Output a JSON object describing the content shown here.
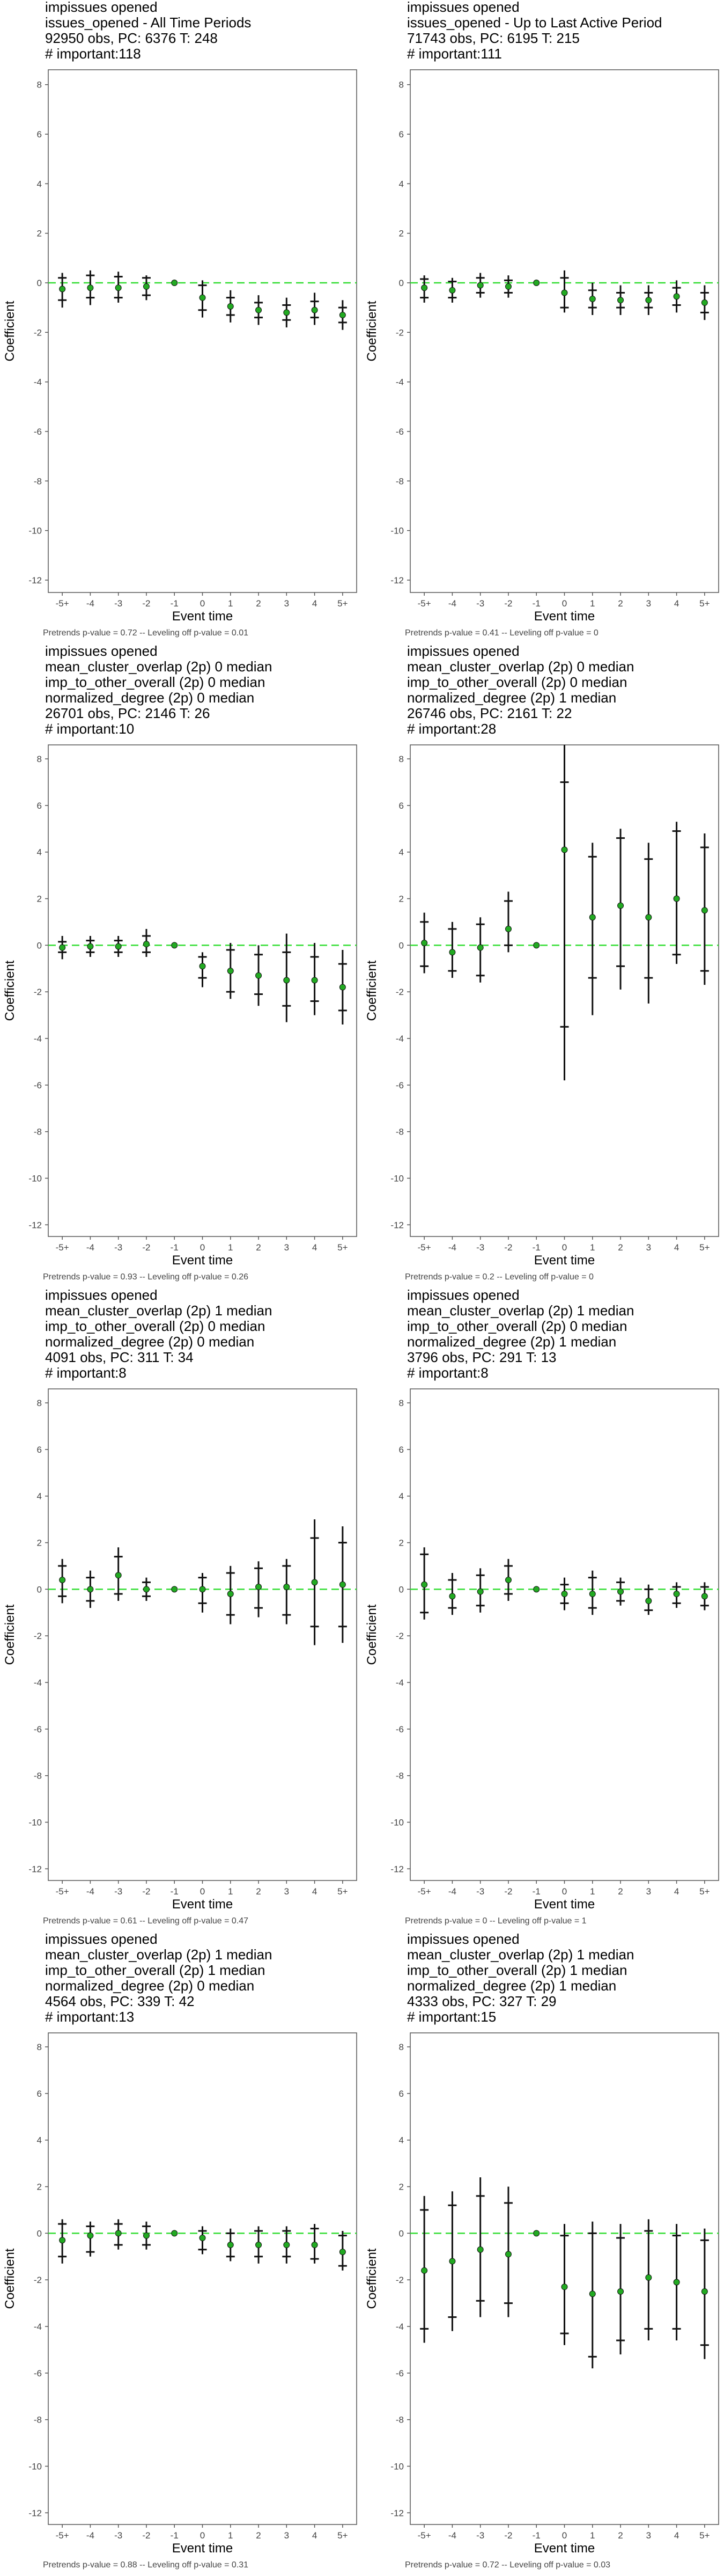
{
  "colors": {
    "panel_border": "#555555",
    "zero_line": "#33dd33",
    "point": "#22aa22",
    "bar": "#111111",
    "text": "#000000",
    "tick_text": "#444444"
  },
  "chart_data": [
    {
      "type": "scatter",
      "title_lines": [
        " impissues opened",
        "issues_opened - All Time Periods",
        "92950 obs, PC: 6376 T: 248",
        "# important:118"
      ],
      "xlabel": "Event time",
      "ylabel": "Coefficient",
      "categories": [
        "-5+",
        "-4",
        "-3",
        "-2",
        "-1",
        "0",
        "1",
        "2",
        "3",
        "4",
        "5+"
      ],
      "yticks": [
        8,
        6,
        4,
        2,
        0,
        -2,
        -4,
        -6,
        -8,
        -10,
        -12
      ],
      "ylim": [
        -12.5,
        8.6
      ],
      "point": [
        -0.25,
        -0.2,
        -0.2,
        -0.15,
        0,
        -0.6,
        -0.95,
        -1.1,
        -1.2,
        -1.1,
        -1.3
      ],
      "outer": [
        [
          -1.0,
          0.4
        ],
        [
          -0.9,
          0.5
        ],
        [
          -0.8,
          0.45
        ],
        [
          -0.7,
          0.3
        ],
        [
          0,
          0
        ],
        [
          -1.4,
          0.1
        ],
        [
          -1.6,
          -0.3
        ],
        [
          -1.7,
          -0.5
        ],
        [
          -1.8,
          -0.6
        ],
        [
          -1.7,
          -0.4
        ],
        [
          -1.9,
          -0.7
        ]
      ],
      "inner": [
        [
          -0.7,
          0.2
        ],
        [
          -0.6,
          0.3
        ],
        [
          -0.6,
          0.25
        ],
        [
          -0.5,
          0.2
        ],
        [
          0,
          0
        ],
        [
          -1.1,
          -0.1
        ],
        [
          -1.3,
          -0.6
        ],
        [
          -1.4,
          -0.8
        ],
        [
          -1.5,
          -0.9
        ],
        [
          -1.4,
          -0.75
        ],
        [
          -1.6,
          -1.0
        ]
      ],
      "footnote": "Pretrends p-value = 0.72 -- Leveling off p-value = 0.01"
    },
    {
      "type": "scatter",
      "title_lines": [
        " impissues opened",
        "issues_opened - Up to Last Active Period",
        "71743 obs, PC: 6195 T: 215",
        "# important:111"
      ],
      "xlabel": "Event time",
      "ylabel": "Coefficient",
      "categories": [
        "-5+",
        "-4",
        "-3",
        "-2",
        "-1",
        "0",
        "1",
        "2",
        "3",
        "4",
        "5+"
      ],
      "yticks": [
        8,
        6,
        4,
        2,
        0,
        -2,
        -4,
        -6,
        -8,
        -10,
        -12
      ],
      "ylim": [
        -12.5,
        8.6
      ],
      "point": [
        -0.2,
        -0.3,
        -0.1,
        -0.15,
        0,
        -0.4,
        -0.65,
        -0.7,
        -0.7,
        -0.55,
        -0.8
      ],
      "outer": [
        [
          -0.8,
          0.3
        ],
        [
          -0.8,
          0.2
        ],
        [
          -0.6,
          0.4
        ],
        [
          -0.6,
          0.3
        ],
        [
          0,
          0
        ],
        [
          -1.2,
          0.5
        ],
        [
          -1.3,
          0.0
        ],
        [
          -1.3,
          -0.1
        ],
        [
          -1.3,
          -0.1
        ],
        [
          -1.2,
          0.1
        ],
        [
          -1.5,
          -0.1
        ]
      ],
      "inner": [
        [
          -0.6,
          0.15
        ],
        [
          -0.6,
          0.05
        ],
        [
          -0.4,
          0.2
        ],
        [
          -0.4,
          0.1
        ],
        [
          0,
          0
        ],
        [
          -1.0,
          0.2
        ],
        [
          -1.0,
          -0.3
        ],
        [
          -1.0,
          -0.4
        ],
        [
          -1.0,
          -0.4
        ],
        [
          -0.9,
          -0.2
        ],
        [
          -1.2,
          -0.4
        ]
      ],
      "footnote": "Pretrends p-value = 0.41 -- Leveling off p-value = 0"
    },
    {
      "type": "scatter",
      "title_lines": [
        " impissues opened",
        "mean_cluster_overlap (2p) 0 median",
        "imp_to_other_overall (2p) 0 median",
        "normalized_degree (2p) 0 median",
        "26701 obs, PC: 2146 T: 26",
        "# important:10"
      ],
      "xlabel": "Event time",
      "ylabel": "Coefficient",
      "categories": [
        "-5+",
        "-4",
        "-3",
        "-2",
        "-1",
        "0",
        "1",
        "2",
        "3",
        "4",
        "5+"
      ],
      "yticks": [
        8,
        6,
        4,
        2,
        0,
        -2,
        -4,
        -6,
        -8,
        -10,
        -12
      ],
      "ylim": [
        -12.5,
        8.6
      ],
      "point": [
        -0.1,
        -0.05,
        -0.05,
        0.05,
        0,
        -0.9,
        -1.1,
        -1.3,
        -1.5,
        -1.5,
        -1.8
      ],
      "outer": [
        [
          -0.6,
          0.4
        ],
        [
          -0.5,
          0.4
        ],
        [
          -0.5,
          0.4
        ],
        [
          -0.5,
          0.7
        ],
        [
          0,
          0
        ],
        [
          -1.8,
          -0.3
        ],
        [
          -2.3,
          0.1
        ],
        [
          -2.6,
          0.0
        ],
        [
          -3.3,
          0.5
        ],
        [
          -3.0,
          0.1
        ],
        [
          -3.4,
          -0.2
        ]
      ],
      "inner": [
        [
          -0.3,
          0.15
        ],
        [
          -0.3,
          0.2
        ],
        [
          -0.3,
          0.2
        ],
        [
          -0.3,
          0.4
        ],
        [
          0,
          0
        ],
        [
          -1.4,
          -0.5
        ],
        [
          -2.0,
          -0.2
        ],
        [
          -2.1,
          -0.4
        ],
        [
          -2.6,
          -0.3
        ],
        [
          -2.4,
          -0.5
        ],
        [
          -2.8,
          -0.8
        ]
      ],
      "footnote": "Pretrends p-value = 0.93 -- Leveling off p-value = 0.26"
    },
    {
      "type": "scatter",
      "title_lines": [
        " impissues opened",
        "mean_cluster_overlap (2p) 0 median",
        "imp_to_other_overall (2p) 0 median",
        "normalized_degree (2p) 1 median",
        "26746 obs, PC: 2161 T: 22",
        "# important:28"
      ],
      "xlabel": "Event time",
      "ylabel": "Coefficient",
      "categories": [
        "-5+",
        "-4",
        "-3",
        "-2",
        "-1",
        "0",
        "1",
        "2",
        "3",
        "4",
        "5+"
      ],
      "yticks": [
        8,
        6,
        4,
        2,
        0,
        -2,
        -4,
        -6,
        -8,
        -10,
        -12
      ],
      "ylim": [
        -12.5,
        8.6
      ],
      "point": [
        0.1,
        -0.3,
        -0.1,
        0.7,
        0,
        4.1,
        1.2,
        1.7,
        1.2,
        2.0,
        1.5
      ],
      "outer": [
        [
          -1.2,
          1.4
        ],
        [
          -1.4,
          1.0
        ],
        [
          -1.6,
          1.2
        ],
        [
          -0.3,
          2.3
        ],
        [
          0,
          0
        ],
        [
          -5.8,
          8.6
        ],
        [
          -3.0,
          4.4
        ],
        [
          -1.9,
          5.0
        ],
        [
          -2.5,
          4.4
        ],
        [
          -0.8,
          5.3
        ],
        [
          -1.7,
          4.8
        ]
      ],
      "inner": [
        [
          -0.9,
          1.0
        ],
        [
          -1.1,
          0.7
        ],
        [
          -1.3,
          0.9
        ],
        [
          0.0,
          1.9
        ],
        [
          0,
          0
        ],
        [
          -3.5,
          7.0
        ],
        [
          -1.4,
          3.8
        ],
        [
          -0.9,
          4.6
        ],
        [
          -1.4,
          3.7
        ],
        [
          -0.4,
          4.9
        ],
        [
          -1.1,
          4.2
        ]
      ],
      "footnote": "Pretrends p-value = 0.2 -- Leveling off p-value = 0"
    },
    {
      "type": "scatter",
      "title_lines": [
        " impissues opened",
        "mean_cluster_overlap (2p) 1 median",
        "imp_to_other_overall (2p) 0 median",
        "normalized_degree (2p) 0 median",
        "4091 obs, PC: 311 T: 34",
        "# important:8"
      ],
      "xlabel": "Event time",
      "ylabel": "Coefficient",
      "categories": [
        "-5+",
        "-4",
        "-3",
        "-2",
        "-1",
        "0",
        "1",
        "2",
        "3",
        "4",
        "5+"
      ],
      "yticks": [
        8,
        6,
        4,
        2,
        0,
        -2,
        -4,
        -6,
        -8,
        -10,
        -12
      ],
      "ylim": [
        -12.5,
        8.6
      ],
      "point": [
        0.4,
        0.0,
        0.6,
        0.0,
        0,
        0.0,
        -0.2,
        0.1,
        0.1,
        0.3,
        0.2
      ],
      "outer": [
        [
          -0.6,
          1.3
        ],
        [
          -0.8,
          0.8
        ],
        [
          -0.5,
          1.8
        ],
        [
          -0.5,
          0.5
        ],
        [
          0,
          0
        ],
        [
          -1.0,
          0.7
        ],
        [
          -1.5,
          1.0
        ],
        [
          -1.2,
          1.2
        ],
        [
          -1.5,
          1.3
        ],
        [
          -2.4,
          3.0
        ],
        [
          -2.3,
          2.7
        ]
      ],
      "inner": [
        [
          -0.3,
          1.0
        ],
        [
          -0.5,
          0.5
        ],
        [
          -0.2,
          1.4
        ],
        [
          -0.3,
          0.3
        ],
        [
          0,
          0
        ],
        [
          -0.6,
          0.5
        ],
        [
          -1.1,
          0.7
        ],
        [
          -0.8,
          0.9
        ],
        [
          -1.1,
          1.0
        ],
        [
          -1.6,
          2.2
        ],
        [
          -1.6,
          2.0
        ]
      ],
      "footnote": "Pretrends p-value = 0.61 -- Leveling off p-value = 0.47"
    },
    {
      "type": "scatter",
      "title_lines": [
        " impissues opened",
        "mean_cluster_overlap (2p) 1 median",
        "imp_to_other_overall (2p) 0 median",
        "normalized_degree (2p) 1 median",
        "3796 obs, PC: 291 T: 13",
        "# important:8"
      ],
      "xlabel": "Event time",
      "ylabel": "Coefficient",
      "categories": [
        "-5+",
        "-4",
        "-3",
        "-2",
        "-1",
        "0",
        "1",
        "2",
        "3",
        "4",
        "5+"
      ],
      "yticks": [
        8,
        6,
        4,
        2,
        0,
        -2,
        -4,
        -6,
        -8,
        -10,
        -12
      ],
      "ylim": [
        -12.5,
        8.6
      ],
      "point": [
        0.2,
        -0.3,
        -0.1,
        0.4,
        0,
        -0.2,
        -0.2,
        -0.1,
        -0.5,
        -0.2,
        -0.3
      ],
      "outer": [
        [
          -1.3,
          1.8
        ],
        [
          -1.1,
          0.7
        ],
        [
          -1.0,
          0.9
        ],
        [
          -0.5,
          1.3
        ],
        [
          0,
          0
        ],
        [
          -0.9,
          0.5
        ],
        [
          -1.1,
          0.8
        ],
        [
          -0.7,
          0.5
        ],
        [
          -1.1,
          0.2
        ],
        [
          -0.8,
          0.3
        ],
        [
          -0.9,
          0.3
        ]
      ],
      "inner": [
        [
          -1.0,
          1.5
        ],
        [
          -0.8,
          0.4
        ],
        [
          -0.7,
          0.6
        ],
        [
          -0.2,
          1.0
        ],
        [
          0,
          0
        ],
        [
          -0.6,
          0.2
        ],
        [
          -0.8,
          0.5
        ],
        [
          -0.5,
          0.3
        ],
        [
          -0.9,
          0.0
        ],
        [
          -0.6,
          0.1
        ],
        [
          -0.7,
          0.1
        ]
      ],
      "footnote": "Pretrends p-value = 0 -- Leveling off p-value = 1"
    },
    {
      "type": "scatter",
      "title_lines": [
        " impissues opened",
        "mean_cluster_overlap (2p) 1 median",
        "imp_to_other_overall (2p) 1 median",
        "normalized_degree (2p) 0 median",
        "4564 obs, PC: 339 T: 42",
        "# important:13"
      ],
      "xlabel": "Event time",
      "ylabel": "Coefficient",
      "categories": [
        "-5+",
        "-4",
        "-3",
        "-2",
        "-1",
        "0",
        "1",
        "2",
        "3",
        "4",
        "5+"
      ],
      "yticks": [
        8,
        6,
        4,
        2,
        0,
        -2,
        -4,
        -6,
        -8,
        -10,
        -12
      ],
      "ylim": [
        -12.5,
        8.6
      ],
      "point": [
        -0.3,
        -0.1,
        0.0,
        -0.1,
        0,
        -0.2,
        -0.5,
        -0.5,
        -0.5,
        -0.5,
        -0.8
      ],
      "outer": [
        [
          -1.3,
          0.6
        ],
        [
          -1.0,
          0.5
        ],
        [
          -0.7,
          0.6
        ],
        [
          -0.7,
          0.5
        ],
        [
          0,
          0
        ],
        [
          -0.9,
          0.3
        ],
        [
          -1.2,
          0.2
        ],
        [
          -1.3,
          0.3
        ],
        [
          -1.3,
          0.3
        ],
        [
          -1.3,
          0.4
        ],
        [
          -1.6,
          0.1
        ]
      ],
      "inner": [
        [
          -1.0,
          0.4
        ],
        [
          -0.8,
          0.3
        ],
        [
          -0.5,
          0.4
        ],
        [
          -0.5,
          0.3
        ],
        [
          0,
          0
        ],
        [
          -0.7,
          0.1
        ],
        [
          -1.0,
          0.0
        ],
        [
          -1.0,
          0.1
        ],
        [
          -1.0,
          0.1
        ],
        [
          -1.1,
          0.2
        ],
        [
          -1.4,
          -0.1
        ]
      ],
      "footnote": "Pretrends p-value = 0.88 -- Leveling off p-value = 0.31"
    },
    {
      "type": "scatter",
      "title_lines": [
        " impissues opened",
        "mean_cluster_overlap (2p) 1 median",
        "imp_to_other_overall (2p) 1 median",
        "normalized_degree (2p) 1 median",
        "4333 obs, PC: 327 T: 29",
        "# important:15"
      ],
      "xlabel": "Event time",
      "ylabel": "Coefficient",
      "categories": [
        "-5+",
        "-4",
        "-3",
        "-2",
        "-1",
        "0",
        "1",
        "2",
        "3",
        "4",
        "5+"
      ],
      "yticks": [
        8,
        6,
        4,
        2,
        0,
        -2,
        -4,
        -6,
        -8,
        -10,
        -12
      ],
      "ylim": [
        -12.5,
        8.6
      ],
      "point": [
        -1.6,
        -1.2,
        -0.7,
        -0.9,
        0,
        -2.3,
        -2.6,
        -2.5,
        -1.9,
        -2.1,
        -2.5
      ],
      "outer": [
        [
          -4.7,
          1.6
        ],
        [
          -4.2,
          1.8
        ],
        [
          -3.6,
          2.4
        ],
        [
          -3.6,
          2.0
        ],
        [
          0,
          0
        ],
        [
          -4.8,
          0.4
        ],
        [
          -5.8,
          0.5
        ],
        [
          -5.2,
          0.4
        ],
        [
          -4.6,
          0.6
        ],
        [
          -4.6,
          0.4
        ],
        [
          -5.4,
          0.2
        ]
      ],
      "inner": [
        [
          -4.1,
          1.0
        ],
        [
          -3.6,
          1.2
        ],
        [
          -2.9,
          1.6
        ],
        [
          -3.0,
          1.3
        ],
        [
          0,
          0
        ],
        [
          -4.3,
          -0.1
        ],
        [
          -5.3,
          0.0
        ],
        [
          -4.6,
          -0.2
        ],
        [
          -4.1,
          0.1
        ],
        [
          -4.1,
          -0.1
        ],
        [
          -4.8,
          -0.3
        ]
      ],
      "footnote": "Pretrends p-value = 0.72 -- Leveling off p-value = 0.03"
    }
  ]
}
